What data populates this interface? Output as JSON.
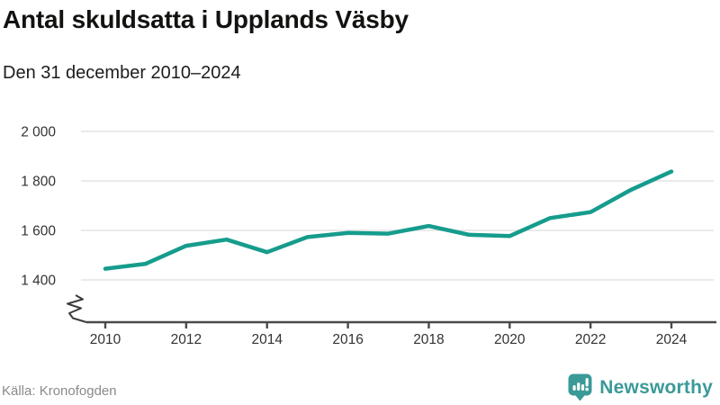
{
  "header": {
    "title": "Antal skuldsatta i Upplands Väsby",
    "subtitle": "Den 31 december 2010–2024"
  },
  "chart_data": {
    "type": "line",
    "title": "Antal skuldsatta i Upplands Väsby",
    "subtitle": "Den 31 december 2010–2024",
    "x": [
      2010,
      2011,
      2012,
      2013,
      2014,
      2015,
      2016,
      2017,
      2018,
      2019,
      2020,
      2021,
      2022,
      2023,
      2024
    ],
    "series": [
      {
        "name": "Antal skuldsatta",
        "values": [
          1445,
          1465,
          1538,
          1563,
          1512,
          1573,
          1590,
          1587,
          1618,
          1582,
          1577,
          1650,
          1674,
          1764,
          1838
        ]
      }
    ],
    "xlabel": "",
    "ylabel": "",
    "ylim": [
      1400,
      2000
    ],
    "yticks": [
      1400,
      1600,
      1800,
      2000
    ],
    "ytick_labels": [
      "1 400",
      "1 600",
      "1 800",
      "2 000"
    ],
    "xticks": [
      2010,
      2012,
      2014,
      2016,
      2018,
      2020,
      2022,
      2024
    ],
    "grid": true,
    "axis_break": true,
    "legend_position": "none",
    "line_color": "#169c8c",
    "grid_color": "#e3e3e3",
    "axis_color": "#4a4a4a",
    "tick_label_color": "#333333"
  },
  "footer": {
    "source": "Källa: Kronofogden",
    "brand": "Newsworthy",
    "brand_color": "#3a9a98"
  }
}
